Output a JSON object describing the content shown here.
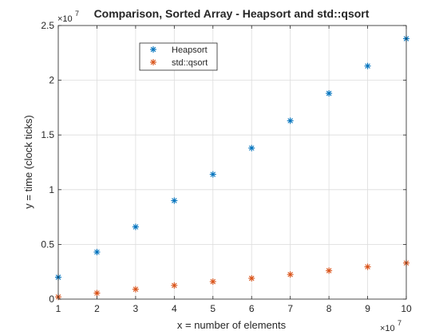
{
  "chart_data": {
    "type": "scatter",
    "title": "Comparison, Sorted Array - Heapsort and std::qsort",
    "xlabel": "x = number of elements",
    "ylabel": "y = time (clock ticks)",
    "x_multiplier": {
      "base": "×10",
      "exponent": "7"
    },
    "y_multiplier": {
      "base": "×10",
      "exponent": "7"
    },
    "xlim": [
      1,
      10
    ],
    "ylim": [
      0,
      2.5
    ],
    "x_ticks": [
      1,
      2,
      3,
      4,
      5,
      6,
      7,
      8,
      9,
      10
    ],
    "y_ticks": [
      0,
      0.5,
      1,
      1.5,
      2,
      2.5
    ],
    "x_tick_labels": [
      "1",
      "2",
      "3",
      "4",
      "5",
      "6",
      "7",
      "8",
      "9",
      "10"
    ],
    "y_tick_labels": [
      "0",
      "0.5",
      "1",
      "1.5",
      "2",
      "2.5"
    ],
    "grid": true,
    "legend_position": "top-left",
    "x": [
      1,
      2,
      3,
      4,
      5,
      6,
      7,
      8,
      9,
      10
    ],
    "series": [
      {
        "name": "Heapsort",
        "color": "#0072BD",
        "marker": "asterisk",
        "values": [
          0.2,
          0.43,
          0.66,
          0.9,
          1.14,
          1.38,
          1.63,
          1.88,
          2.13,
          2.38
        ]
      },
      {
        "name": "std::qsort",
        "color": "#D95319",
        "marker": "asterisk",
        "values": [
          0.02,
          0.055,
          0.09,
          0.125,
          0.16,
          0.19,
          0.225,
          0.26,
          0.295,
          0.33
        ]
      }
    ]
  }
}
